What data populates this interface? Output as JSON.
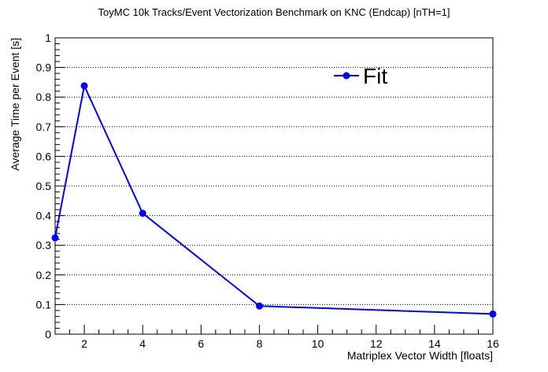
{
  "chart_data": {
    "type": "line",
    "title": "ToyMC 10k Tracks/Event Vectorization Benchmark on KNC (Endcap) [nTH=1]",
    "xlabel": "Matriplex Vector Width [floats]",
    "ylabel": "Average Time per Event [s]",
    "xlim": [
      1,
      16
    ],
    "ylim": [
      0,
      1
    ],
    "x_ticks": [
      2,
      4,
      6,
      8,
      10,
      12,
      14,
      16
    ],
    "y_ticks": [
      0,
      0.1,
      0.2,
      0.3,
      0.4,
      0.5,
      0.6,
      0.7,
      0.8,
      0.9,
      1
    ],
    "grid": "horizontal-dotted",
    "legend_position": "top-right",
    "series": [
      {
        "name": "Fit",
        "color": "#0000ff",
        "x": [
          1,
          2,
          4,
          8,
          16
        ],
        "y": [
          0.325,
          0.838,
          0.408,
          0.095,
          0.068
        ]
      }
    ]
  }
}
